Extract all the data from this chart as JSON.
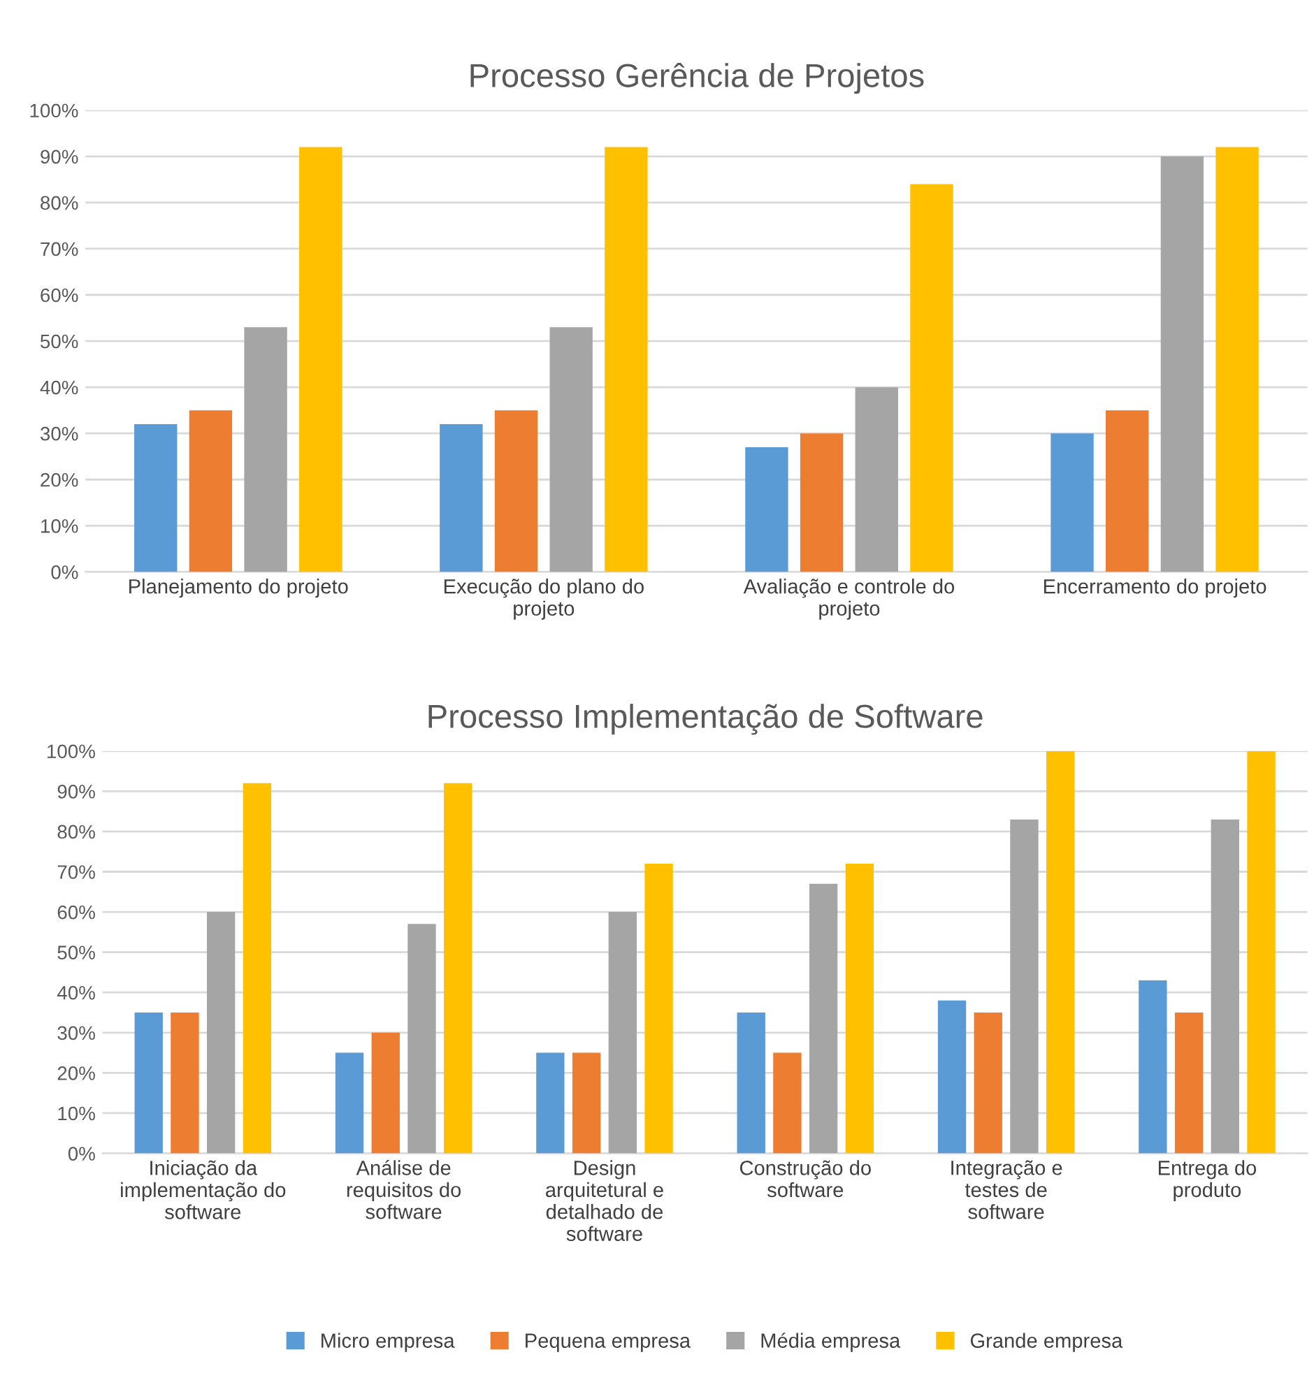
{
  "chart_data": [
    {
      "type": "bar",
      "title": "Processo Gerência de Projetos",
      "categories": [
        "Planejamento do projeto",
        "Execução do plano do projeto",
        "Avaliação e controle do projeto",
        "Encerramento do projeto"
      ],
      "series": [
        {
          "color": "#5b9bd5",
          "values": [
            32,
            32,
            27,
            30
          ]
        },
        {
          "color": "#ed7d31",
          "values": [
            35,
            35,
            30,
            35
          ]
        },
        {
          "color": "#a5a5a5",
          "values": [
            53,
            53,
            40,
            90
          ]
        },
        {
          "color": "#ffc000",
          "values": [
            92,
            92,
            84,
            92
          ]
        }
      ],
      "ylim": [
        0,
        100
      ],
      "yticks": [
        {
          "value": 0,
          "label": "0%"
        },
        {
          "value": 10,
          "label": "10%"
        },
        {
          "value": 20,
          "label": "20%"
        },
        {
          "value": 30,
          "label": "30%"
        },
        {
          "value": 40,
          "label": "40%"
        },
        {
          "value": 50,
          "label": "50%"
        },
        {
          "value": 60,
          "label": "60%"
        },
        {
          "value": 70,
          "label": "70%"
        },
        {
          "value": 80,
          "label": "80%"
        },
        {
          "value": 90,
          "label": "90%"
        },
        {
          "value": 100,
          "label": "100%"
        }
      ],
      "grid": "y"
    },
    {
      "type": "bar",
      "title": "Processo Implementação de Software",
      "categories": [
        "Iniciação da implementação do software",
        "Análise de requisitos do software",
        "Design arquitetural e detalhado de software",
        "Construção do software",
        "Integração e testes de software",
        "Entrega do produto"
      ],
      "series": [
        {
          "name": "Micro empresa",
          "color": "#5b9bd5",
          "values": [
            35,
            25,
            25,
            35,
            38,
            43
          ]
        },
        {
          "name": "Pequena empresa",
          "color": "#ed7d31",
          "values": [
            35,
            30,
            25,
            25,
            35,
            35
          ]
        },
        {
          "name": "Média empresa",
          "color": "#a5a5a5",
          "values": [
            60,
            57,
            60,
            67,
            83,
            83
          ]
        },
        {
          "name": "Grande empresa",
          "color": "#ffc000",
          "values": [
            92,
            92,
            72,
            72,
            100,
            100
          ]
        }
      ],
      "ylim": [
        0,
        100
      ],
      "yticks": [
        {
          "value": 0,
          "label": "0%"
        },
        {
          "value": 10,
          "label": "10%"
        },
        {
          "value": 20,
          "label": "20%"
        },
        {
          "value": 30,
          "label": "30%"
        },
        {
          "value": 40,
          "label": "40%"
        },
        {
          "value": 50,
          "label": "50%"
        },
        {
          "value": 60,
          "label": "60%"
        },
        {
          "value": 70,
          "label": "70%"
        },
        {
          "value": 80,
          "label": "80%"
        },
        {
          "value": 90,
          "label": "90%"
        },
        {
          "value": 100,
          "label": "100%"
        }
      ],
      "grid": "y",
      "legend": "bottom"
    }
  ]
}
